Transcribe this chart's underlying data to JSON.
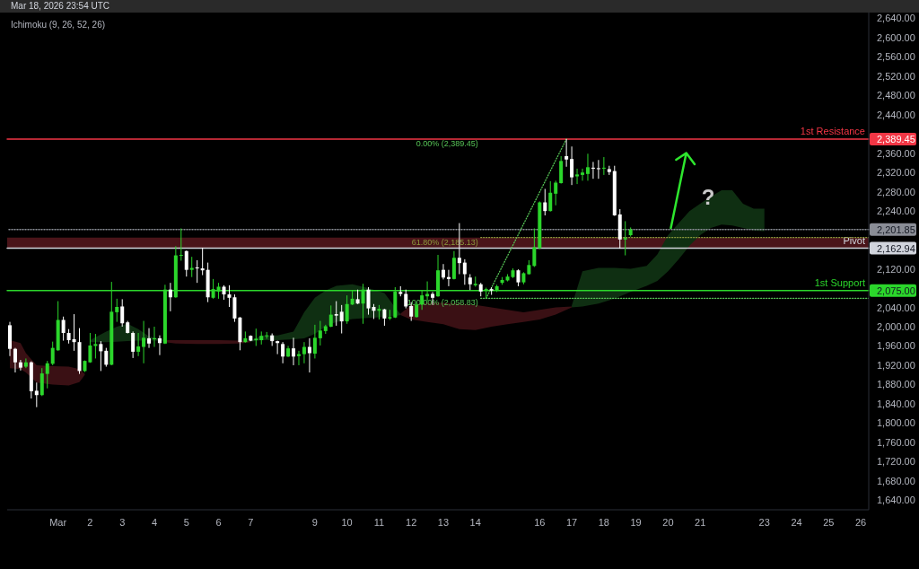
{
  "chart_data": {
    "type": "candlestick",
    "annotations": [
      "Mar 18, 2026 23:54 UTC",
      "Ichimoku (9, 26, 52, 26)",
      {
        "text": "0.00% (2,389.45)",
        "x": "2026-03-14T04:00",
        "y": 2389.45
      },
      {
        "text": "?",
        "x": "2026-03-21T06:00",
        "y": 2268
      }
    ],
    "x": [
      "2026-02-27T12:00",
      "2026-02-27T16:00",
      "2026-02-27T20:00",
      "2026-02-28T00:00",
      "2026-02-28T04:00",
      "2026-02-28T08:00",
      "2026-02-28T12:00",
      "2026-02-28T16:00",
      "2026-02-28T20:00",
      "2026-03-01T00:00",
      "2026-03-01T04:00",
      "2026-03-01T08:00",
      "2026-03-01T12:00",
      "2026-03-01T16:00",
      "2026-03-01T20:00",
      "2026-03-02T00:00",
      "2026-03-02T04:00",
      "2026-03-02T08:00",
      "2026-03-02T12:00",
      "2026-03-02T16:00",
      "2026-03-02T20:00",
      "2026-03-03T00:00",
      "2026-03-03T04:00",
      "2026-03-03T08:00",
      "2026-03-03T12:00",
      "2026-03-03T16:00",
      "2026-03-03T20:00",
      "2026-03-04T00:00",
      "2026-03-04T04:00",
      "2026-03-04T08:00",
      "2026-03-04T12:00",
      "2026-03-04T16:00",
      "2026-03-04T20:00",
      "2026-03-05T00:00",
      "2026-03-05T04:00",
      "2026-03-05T08:00",
      "2026-03-05T12:00",
      "2026-03-05T16:00",
      "2026-03-05T20:00",
      "2026-03-06T00:00",
      "2026-03-06T04:00",
      "2026-03-06T08:00",
      "2026-03-06T12:00",
      "2026-03-06T16:00",
      "2026-03-06T20:00",
      "2026-03-07T00:00",
      "2026-03-07T04:00",
      "2026-03-07T08:00",
      "2026-03-07T12:00",
      "2026-03-07T16:00",
      "2026-03-07T20:00",
      "2026-03-08T00:00",
      "2026-03-08T04:00",
      "2026-03-08T08:00",
      "2026-03-08T12:00",
      "2026-03-08T16:00",
      "2026-03-08T20:00",
      "2026-03-09T00:00",
      "2026-03-09T04:00",
      "2026-03-09T08:00",
      "2026-03-09T12:00",
      "2026-03-09T16:00",
      "2026-03-09T20:00",
      "2026-03-10T00:00",
      "2026-03-10T04:00",
      "2026-03-10T08:00",
      "2026-03-10T12:00",
      "2026-03-10T16:00",
      "2026-03-10T20:00",
      "2026-03-11T00:00",
      "2026-03-11T04:00",
      "2026-03-11T08:00",
      "2026-03-11T12:00",
      "2026-03-11T16:00",
      "2026-03-11T20:00",
      "2026-03-12T00:00",
      "2026-03-12T04:00",
      "2026-03-12T08:00",
      "2026-03-12T12:00",
      "2026-03-12T16:00",
      "2026-03-12T20:00",
      "2026-03-13T00:00",
      "2026-03-13T04:00",
      "2026-03-13T08:00",
      "2026-03-13T12:00",
      "2026-03-13T16:00",
      "2026-03-13T20:00",
      "2026-03-14T00:00",
      "2026-03-14T04:00",
      "2026-03-14T08:00",
      "2026-03-14T12:00",
      "2026-03-14T16:00",
      "2026-03-14T20:00",
      "2026-03-15T00:00",
      "2026-03-15T04:00",
      "2026-03-15T08:00",
      "2026-03-15T12:00",
      "2026-03-15T16:00",
      "2026-03-15T20:00",
      "2026-03-16T00:00",
      "2026-03-16T04:00",
      "2026-03-16T08:00",
      "2026-03-16T12:00",
      "2026-03-16T16:00",
      "2026-03-16T20:00",
      "2026-03-17T00:00",
      "2026-03-17T04:00",
      "2026-03-17T08:00",
      "2026-03-17T12:00",
      "2026-03-17T16:00",
      "2026-03-17T20:00",
      "2026-03-18T00:00",
      "2026-03-18T04:00",
      "2026-03-18T08:00",
      "2026-03-18T12:00",
      "2026-03-18T16:00",
      "2026-03-18T20:00"
    ],
    "ohlc": [
      [
        2003,
        2010,
        1939,
        1954
      ],
      [
        1954,
        1956,
        1905,
        1926
      ],
      [
        1926,
        1931,
        1909,
        1915
      ],
      [
        1917,
        1934,
        1914,
        1926
      ],
      [
        1926,
        1928,
        1851,
        1866
      ],
      [
        1867,
        1884,
        1833,
        1858
      ],
      [
        1858,
        1914,
        1856,
        1903
      ],
      [
        1902,
        1929,
        1872,
        1924
      ],
      [
        1923,
        1969,
        1920,
        1956
      ],
      [
        1951,
        2053,
        1950,
        2014
      ],
      [
        2014,
        2021,
        1971,
        1987
      ],
      [
        1987,
        1995,
        1965,
        1972
      ],
      [
        1974,
        2026,
        1950,
        1968
      ],
      [
        1968,
        1997,
        1902,
        1908
      ],
      [
        1908,
        1930,
        1906,
        1929
      ],
      [
        1926,
        1987,
        1925,
        1961
      ],
      [
        1960,
        1985,
        1934,
        1964
      ],
      [
        1964,
        1970,
        1908,
        1949
      ],
      [
        1950,
        1956,
        1917,
        1921
      ],
      [
        1921,
        2093,
        1920,
        2031
      ],
      [
        2030,
        2058,
        2010,
        2041
      ],
      [
        2042,
        2057,
        2000,
        2007
      ],
      [
        2009,
        2012,
        1986,
        1987
      ],
      [
        1987,
        1990,
        1935,
        1948
      ],
      [
        1948,
        1987,
        1939,
        1959
      ],
      [
        1958,
        2012,
        1924,
        1977
      ],
      [
        1976,
        1997,
        1956,
        1965
      ],
      [
        1974,
        2000,
        1958,
        1976
      ],
      [
        1976,
        1982,
        1941,
        1966
      ],
      [
        1965,
        2087,
        1964,
        2077
      ],
      [
        2077,
        2091,
        2032,
        2061
      ],
      [
        2061,
        2167,
        2060,
        2148
      ],
      [
        2148,
        2204,
        2137,
        2149
      ],
      [
        2157,
        2158,
        2104,
        2118
      ],
      [
        2118,
        2145,
        2103,
        2122
      ],
      [
        2123,
        2138,
        2091,
        2121
      ],
      [
        2121,
        2164,
        2107,
        2117
      ],
      [
        2118,
        2133,
        2051,
        2061
      ],
      [
        2060,
        2099,
        2058,
        2078
      ],
      [
        2073,
        2091,
        2058,
        2083
      ],
      [
        2083,
        2086,
        2056,
        2067
      ],
      [
        2067,
        2086,
        2041,
        2060
      ],
      [
        2061,
        2067,
        2010,
        2017
      ],
      [
        2019,
        2020,
        1951,
        1968
      ],
      [
        1968,
        1990,
        1967,
        1976
      ],
      [
        1981,
        1982,
        1970,
        1971
      ],
      [
        1972,
        1996,
        1960,
        1975
      ],
      [
        1972,
        1990,
        1963,
        1981
      ],
      [
        1981,
        1989,
        1975,
        1982
      ],
      [
        1982,
        1986,
        1960,
        1970
      ],
      [
        1970,
        1971,
        1943,
        1966
      ],
      [
        1964,
        1968,
        1924,
        1938
      ],
      [
        1938,
        1960,
        1937,
        1955
      ],
      [
        1955,
        1977,
        1920,
        1938
      ],
      [
        1939,
        1950,
        1920,
        1943
      ],
      [
        1943,
        1968,
        1924,
        1958
      ],
      [
        1958,
        1976,
        1905,
        1945
      ],
      [
        1944,
        2004,
        1934,
        1977
      ],
      [
        1976,
        2012,
        1961,
        1992
      ],
      [
        1991,
        2004,
        1985,
        2001
      ],
      [
        2000,
        2044,
        1999,
        2025
      ],
      [
        2026,
        2053,
        2002,
        2023
      ],
      [
        2031,
        2045,
        1986,
        2011
      ],
      [
        2011,
        2065,
        2006,
        2047
      ],
      [
        2046,
        2076,
        2045,
        2058
      ],
      [
        2057,
        2077,
        2047,
        2048
      ],
      [
        2048,
        2089,
        2006,
        2077
      ],
      [
        2077,
        2082,
        2025,
        2038
      ],
      [
        2041,
        2047,
        2016,
        2033
      ],
      [
        2033,
        2045,
        2015,
        2037
      ],
      [
        2036,
        2037,
        2002,
        2017
      ],
      [
        2017,
        2035,
        2014,
        2020
      ],
      [
        2019,
        2082,
        2018,
        2073
      ],
      [
        2072,
        2084,
        2063,
        2068
      ],
      [
        2068,
        2077,
        2038,
        2042
      ],
      [
        2043,
        2051,
        2012,
        2021
      ],
      [
        2020,
        2050,
        2019,
        2046
      ],
      [
        2046,
        2075,
        2035,
        2065
      ],
      [
        2063,
        2094,
        2053,
        2068
      ],
      [
        2068,
        2072,
        2045,
        2060
      ],
      [
        2063,
        2149,
        2062,
        2117
      ],
      [
        2118,
        2130,
        2098,
        2102
      ],
      [
        2103,
        2118,
        2084,
        2099
      ],
      [
        2099,
        2157,
        2098,
        2143
      ],
      [
        2143,
        2215,
        2109,
        2132
      ],
      [
        2133,
        2140,
        2087,
        2109
      ],
      [
        2102,
        2109,
        2076,
        2088
      ],
      [
        2086,
        2104,
        2083,
        2089
      ],
      [
        2088,
        2091,
        2063,
        2073
      ],
      [
        2075,
        2081,
        2058.83,
        2078
      ],
      [
        2078,
        2082,
        2066,
        2075
      ],
      [
        2075,
        2087,
        2072,
        2084
      ],
      [
        2091,
        2103,
        2087,
        2097
      ],
      [
        2096,
        2109,
        2094,
        2104
      ],
      [
        2103,
        2121,
        2101,
        2117
      ],
      [
        2117,
        2119,
        2084,
        2092
      ],
      [
        2092,
        2113,
        2088,
        2111
      ],
      [
        2109,
        2138,
        2108,
        2128
      ],
      [
        2126,
        2204,
        2124,
        2165
      ],
      [
        2163,
        2260,
        2161,
        2258
      ],
      [
        2258,
        2286,
        2231,
        2240
      ],
      [
        2240,
        2302,
        2239,
        2278
      ],
      [
        2276,
        2303,
        2252,
        2299
      ],
      [
        2298,
        2354,
        2297,
        2344
      ],
      [
        2354,
        2389.45,
        2332,
        2347
      ],
      [
        2348,
        2374,
        2294,
        2310
      ],
      [
        2312,
        2328,
        2296,
        2316
      ],
      [
        2315,
        2328,
        2303,
        2320
      ],
      [
        2317,
        2359,
        2303,
        2331
      ],
      [
        2330,
        2342,
        2307,
        2328
      ],
      [
        2329,
        2346,
        2307,
        2327
      ],
      [
        2328,
        2352,
        2315,
        2330
      ],
      [
        2327,
        2334,
        2315,
        2321
      ],
      [
        2323,
        2334,
        2230,
        2231
      ],
      [
        2233,
        2244,
        2162,
        2181
      ],
      [
        2181,
        2219,
        2148,
        2184
      ],
      [
        2190,
        2206,
        2187,
        2201.85
      ]
    ],
    "colors": [
      "#ffffff",
      "#ffffff",
      "#ffffff",
      "#2bd62b",
      "#ffffff",
      "#ffffff",
      "#2bd62b",
      "#2bd62b",
      "#2bd62b",
      "#2bd62b",
      "#ffffff",
      "#ffffff",
      "#ffffff",
      "#ffffff",
      "#2bd62b",
      "#2bd62b",
      "#2bd62b",
      "#ffffff",
      "#ffffff",
      "#2bd62b",
      "#2bd62b",
      "#ffffff",
      "#ffffff",
      "#ffffff",
      "#2bd62b",
      "#2bd62b",
      "#ffffff",
      "#2bd62b",
      "#ffffff",
      "#2bd62b",
      "#ffffff",
      "#2bd62b",
      "#2bd62b",
      "#ffffff",
      "#2bd62b",
      "#ffffff",
      "#ffffff",
      "#ffffff",
      "#2bd62b",
      "#2bd62b",
      "#ffffff",
      "#ffffff",
      "#ffffff",
      "#ffffff",
      "#2bd62b",
      "#ffffff",
      "#2bd62b",
      "#2bd62b",
      "#2bd62b",
      "#ffffff",
      "#ffffff",
      "#ffffff",
      "#2bd62b",
      "#ffffff",
      "#2bd62b",
      "#2bd62b",
      "#ffffff",
      "#2bd62b",
      "#2bd62b",
      "#2bd62b",
      "#2bd62b",
      "#ffffff",
      "#ffffff",
      "#2bd62b",
      "#2bd62b",
      "#ffffff",
      "#2bd62b",
      "#ffffff",
      "#ffffff",
      "#2bd62b",
      "#ffffff",
      "#2bd62b",
      "#2bd62b",
      "#ffffff",
      "#ffffff",
      "#ffffff",
      "#2bd62b",
      "#2bd62b",
      "#2bd62b",
      "#ffffff",
      "#2bd62b",
      "#ffffff",
      "#ffffff",
      "#2bd62b",
      "#ffffff",
      "#ffffff",
      "#ffffff",
      "#2bd62b",
      "#ffffff",
      "#2bd62b",
      "#ffffff",
      "#2bd62b",
      "#2bd62b",
      "#2bd62b",
      "#2bd62b",
      "#ffffff",
      "#2bd62b",
      "#2bd62b",
      "#2bd62b",
      "#2bd62b",
      "#ffffff",
      "#2bd62b",
      "#2bd62b",
      "#2bd62b",
      "#ffffff",
      "#ffffff",
      "#2bd62b",
      "#2bd62b",
      "#2bd62b",
      "#ffffff",
      "#ffffff",
      "#2bd62b",
      "#ffffff",
      "#ffffff",
      "#ffffff",
      "#2bd62b",
      "#2bd62b"
    ],
    "series": [
      {
        "type": "line",
        "color": "#3a1014",
        "x": [
          "2026-02-27T12:00",
          "2026-02-27T20:00",
          "2026-02-28T00:00",
          "2026-02-28T08:00",
          "2026-02-28T20:00",
          "2026-03-01T08:00",
          "2026-03-01T16:00",
          "2026-03-01T20:00"
        ],
        "values": [
          null,
          null,
          null,
          null,
          null,
          null,
          null,
          null
        ],
        "lower": [
          1914,
          1912,
          1905,
          1884,
          1880,
          1878,
          1885,
          1900
        ],
        "upper": [
          1972,
          1966,
          1945,
          1920,
          1918,
          1917,
          1912,
          1902
        ]
      },
      {
        "type": "line",
        "color": "#0f2f12",
        "x": [
          "2026-03-02T00:00",
          "2026-03-02T04:00",
          "2026-03-02T12:00",
          "2026-03-02T20:00",
          "2026-03-03T04:00",
          "2026-03-03T12:00",
          "2026-03-03T20:00",
          "2026-03-04T04:00",
          "2026-03-04T08:00"
        ],
        "values": [
          null,
          null,
          null,
          null,
          null,
          null,
          null,
          null,
          null
        ],
        "lower": [
          1968,
          1968,
          1968,
          1969,
          1970,
          1971,
          1971,
          1971,
          1970
        ],
        "upper": [
          1972,
          1978,
          1990,
          2000,
          2006,
          1995,
          1980,
          1975,
          1972
        ]
      },
      {
        "type": "line",
        "color": "#3a1014",
        "x": [
          "2026-03-04T08:00",
          "2026-03-04T16:00",
          "2026-03-05T08:00",
          "2026-03-06T00:00",
          "2026-03-06T16:00",
          "2026-03-07T00:00"
        ],
        "values": [
          null,
          null,
          null,
          null,
          null,
          null
        ],
        "lower": [
          1968,
          1965,
          1964,
          1964,
          1965,
          1968
        ],
        "upper": [
          1972,
          1972,
          1972,
          1972,
          1971,
          1970
        ]
      },
      {
        "type": "line",
        "color": "#0f2f12",
        "x": [
          "2026-03-07T00:00",
          "2026-03-07T08:00",
          "2026-03-07T20:00",
          "2026-03-08T08:00",
          "2026-03-08T16:00",
          "2026-03-09T00:00",
          "2026-03-09T08:00",
          "2026-03-09T16:00",
          "2026-03-10T04:00",
          "2026-03-10T16:00",
          "2026-03-11T04:00",
          "2026-03-11T12:00",
          "2026-03-11T16:00"
        ],
        "values": [
          null,
          null,
          null,
          null,
          null,
          null,
          null,
          null,
          null,
          null,
          null,
          null,
          null
        ],
        "lower": [
          1969,
          1972,
          1972,
          1974,
          1976,
          1985,
          2000,
          2010,
          2016,
          2018,
          2020,
          2022,
          2024
        ],
        "upper": [
          1971,
          1982,
          1982,
          1990,
          2030,
          2060,
          2075,
          2085,
          2088,
          2080,
          2070,
          2040,
          2026
        ]
      },
      {
        "type": "line",
        "color": "#3a1014",
        "x": [
          "2026-03-11T16:00",
          "2026-03-12T00:00",
          "2026-03-12T12:00",
          "2026-03-13T00:00",
          "2026-03-13T12:00",
          "2026-03-14T00:00",
          "2026-03-14T12:00",
          "2026-03-15T00:00",
          "2026-03-15T12:00",
          "2026-03-16T00:00",
          "2026-03-16T12:00",
          "2026-03-17T00:00"
        ],
        "values": [
          null,
          null,
          null,
          null,
          null,
          null,
          null,
          null,
          null,
          null,
          null,
          null
        ],
        "lower": [
          2024,
          2015,
          2010,
          2005,
          1995,
          1993,
          2000,
          2005,
          2010,
          2015,
          2025,
          2040
        ],
        "upper": [
          2027,
          2045,
          2050,
          2050,
          2048,
          2045,
          2040,
          2035,
          2030,
          2035,
          2040,
          2042
        ]
      },
      {
        "type": "line",
        "color": "#0f2f12",
        "x": [
          "2026-03-17T00:00",
          "2026-03-17T08:00",
          "2026-03-17T20:00",
          "2026-03-18T08:00",
          "2026-03-18T20:00",
          "2026-03-19T08:00",
          "2026-03-19T16:00",
          "2026-03-20T00:00",
          "2026-03-20T08:00",
          "2026-03-20T16:00",
          "2026-03-21T00:00",
          "2026-03-21T08:00",
          "2026-03-21T16:00",
          "2026-03-22T00:00",
          "2026-03-22T08:00",
          "2026-03-22T16:00",
          "2026-03-23T00:00"
        ],
        "values": [
          null,
          null,
          null,
          null,
          null,
          null,
          null,
          null,
          null,
          null,
          null,
          null,
          null,
          null,
          null,
          null,
          null
        ],
        "lower": [
          2040,
          2042,
          2048,
          2058,
          2072,
          2085,
          2095,
          2115,
          2140,
          2168,
          2190,
          2205,
          2212,
          2210,
          2205,
          2200,
          2198
        ],
        "upper": [
          2044,
          2115,
          2122,
          2122,
          2120,
          2126,
          2150,
          2190,
          2215,
          2240,
          2255,
          2270,
          2283,
          2283,
          2255,
          2245,
          2245
        ]
      },
      {
        "type": "line",
        "color": "#56c456",
        "line_style": "dotted",
        "x": [
          "2026-03-14T08:00",
          "2026-03-16T20:00"
        ],
        "values": [
          2058.83,
          2389.45
        ]
      },
      {
        "type": "line",
        "name": "61.80% (2,185.13)",
        "color": "#8c9a3c",
        "line_style": "dotted",
        "x": [
          "2026-03-14T04:00",
          "2026-03-26T06:00"
        ],
        "values": [
          2185.13,
          2185.13
        ]
      },
      {
        "type": "line",
        "name": "100.00% (2,058.83)",
        "color": "#56c456",
        "line_style": "dotted",
        "x": [
          "2026-03-14T04:00",
          "2026-03-26T06:00"
        ],
        "values": [
          2058.83,
          2058.83
        ]
      }
    ],
    "ref_lines": [
      {
        "axis": "y",
        "value": 2389.45,
        "label": "1st Resistance",
        "color": "#f23645"
      },
      {
        "axis": "y",
        "value": 2201.85,
        "label": null,
        "color": "#8a8d96",
        "line_style": "dotted"
      },
      {
        "axis": "y",
        "value": 2162.94,
        "label": "Pivot",
        "color": "#d1d4dc"
      },
      {
        "axis": "y",
        "value": 2075,
        "label": "1st Support",
        "color": "#2bd62b"
      }
    ],
    "bands": [
      {
        "axis": "y",
        "from": 2162.94,
        "to": 2185.13,
        "color": "#4a1419"
      }
    ],
    "xlim": [
      "2026-02-27T10:00",
      "2026-03-26T06:00"
    ],
    "xticks": [
      {
        "value": "2026-03-01",
        "label": "Mar"
      },
      {
        "value": "2026-03-02",
        "label": "2"
      },
      {
        "value": "2026-03-03",
        "label": "3"
      },
      {
        "value": "2026-03-04",
        "label": "4"
      },
      {
        "value": "2026-03-05",
        "label": "5"
      },
      {
        "value": "2026-03-06",
        "label": "6"
      },
      {
        "value": "2026-03-07",
        "label": "7"
      },
      {
        "value": "2026-03-09",
        "label": "9"
      },
      {
        "value": "2026-03-10",
        "label": "10"
      },
      {
        "value": "2026-03-11",
        "label": "11"
      },
      {
        "value": "2026-03-12",
        "label": "12"
      },
      {
        "value": "2026-03-13",
        "label": "13"
      },
      {
        "value": "2026-03-14",
        "label": "14"
      },
      {
        "value": "2026-03-16",
        "label": "16"
      },
      {
        "value": "2026-03-17",
        "label": "17"
      },
      {
        "value": "2026-03-18",
        "label": "18"
      },
      {
        "value": "2026-03-19",
        "label": "19"
      },
      {
        "value": "2026-03-20",
        "label": "20"
      },
      {
        "value": "2026-03-21",
        "label": "21"
      },
      {
        "value": "2026-03-23",
        "label": "23"
      },
      {
        "value": "2026-03-24",
        "label": "24"
      },
      {
        "value": "2026-03-25",
        "label": "25"
      },
      {
        "value": "2026-03-26",
        "label": "26"
      }
    ],
    "ylim": [
      1620,
      2652
    ],
    "yticks": [
      {
        "value": 1640,
        "label": "1,640.00"
      },
      {
        "value": 1680,
        "label": "1,680.00"
      },
      {
        "value": 1720,
        "label": "1,720.00"
      },
      {
        "value": 1760,
        "label": "1,760.00"
      },
      {
        "value": 1800,
        "label": "1,800.00"
      },
      {
        "value": 1840,
        "label": "1,840.00"
      },
      {
        "value": 1880,
        "label": "1,880.00"
      },
      {
        "value": 1920,
        "label": "1,920.00"
      },
      {
        "value": 1960,
        "label": "1,960.00"
      },
      {
        "value": 2000,
        "label": "2,000.00"
      },
      {
        "value": 2040,
        "label": "2,040.00"
      },
      {
        "value": 2075,
        "label": "2,075.00"
      },
      {
        "value": 2120,
        "label": "2,120.00"
      },
      {
        "value": 2162.94,
        "label": "2,162.94"
      },
      {
        "value": 2201.85,
        "label": "2,201.85"
      },
      {
        "value": 2240,
        "label": "2,240.00"
      },
      {
        "value": 2280,
        "label": "2,280.00"
      },
      {
        "value": 2320,
        "label": "2,320.00"
      },
      {
        "value": 2360,
        "label": "2,360.00"
      },
      {
        "value": 2389.45,
        "label": "2,389.45"
      },
      {
        "value": 2440,
        "label": "2,440.00"
      },
      {
        "value": 2480,
        "label": "2,480.00"
      },
      {
        "value": 2520,
        "label": "2,520.00"
      },
      {
        "value": 2560,
        "label": "2,560.00"
      },
      {
        "value": 2600,
        "label": "2,600.00"
      },
      {
        "value": 2640,
        "label": "2,640.00"
      }
    ]
  }
}
